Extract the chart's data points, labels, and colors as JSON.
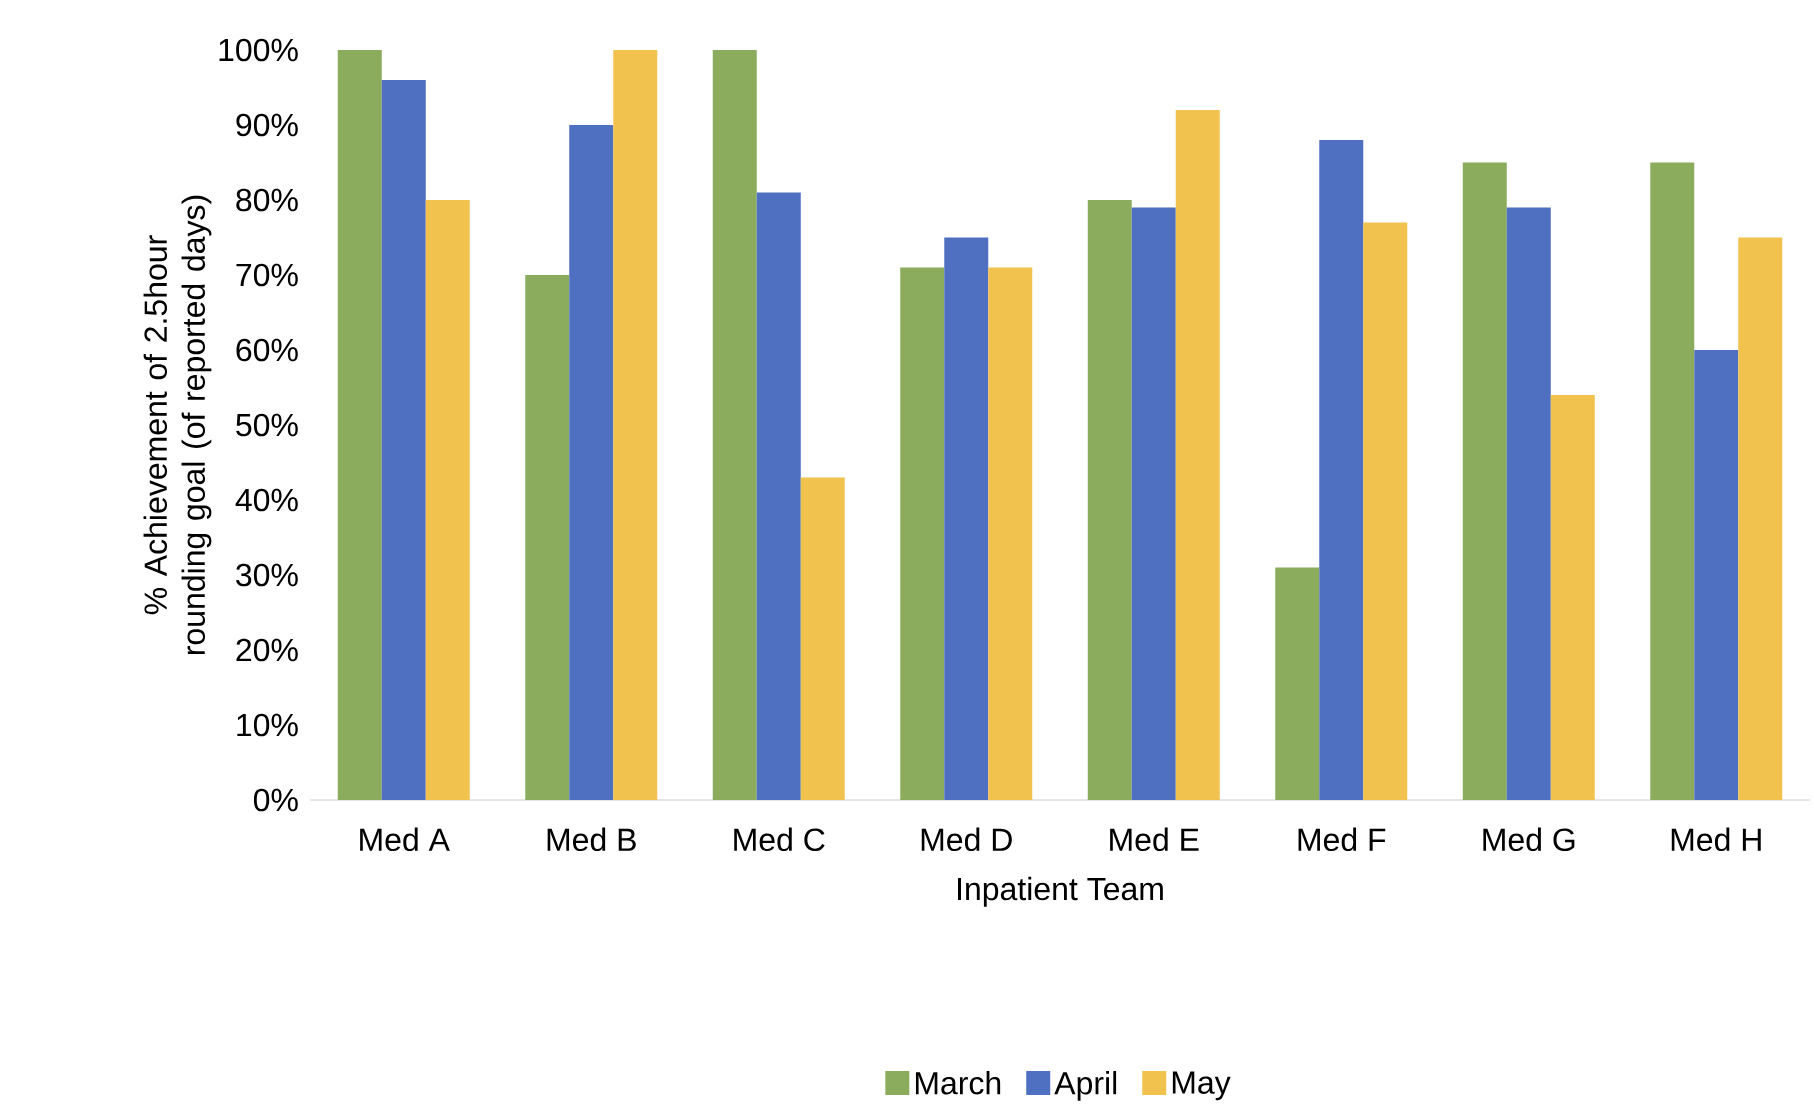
{
  "chart_data": {
    "type": "bar",
    "xlabel": "Inpatient Team",
    "ylabel": "% Achievement of 2.5hour rounding goal (of reported days)",
    "categories": [
      "Med A",
      "Med B",
      "Med C",
      "Med D",
      "Med E",
      "Med F",
      "Med G",
      "Med H"
    ],
    "series": [
      {
        "name": "March",
        "color": "#8aac5c",
        "values": [
          100,
          70,
          100,
          71,
          80,
          31,
          85,
          85
        ]
      },
      {
        "name": "April",
        "color": "#4f6fc0",
        "values": [
          96,
          90,
          81,
          75,
          79,
          88,
          79,
          60
        ]
      },
      {
        "name": "May",
        "color": "#f2c24f",
        "values": [
          80,
          100,
          43,
          71,
          92,
          77,
          54,
          75
        ]
      }
    ],
    "ylim": [
      0,
      100
    ],
    "yticks": [
      {
        "value": 0,
        "label": "0%"
      },
      {
        "value": 10,
        "label": "10%"
      },
      {
        "value": 20,
        "label": "20%"
      },
      {
        "value": 30,
        "label": "30%"
      },
      {
        "value": 40,
        "label": "40%"
      },
      {
        "value": 50,
        "label": "50%"
      },
      {
        "value": 60,
        "label": "60%"
      },
      {
        "value": 70,
        "label": "70%"
      },
      {
        "value": 80,
        "label": "80%"
      },
      {
        "value": 90,
        "label": "90%"
      },
      {
        "value": 100,
        "label": "100%"
      }
    ],
    "grid": false,
    "legend": "bottom"
  }
}
